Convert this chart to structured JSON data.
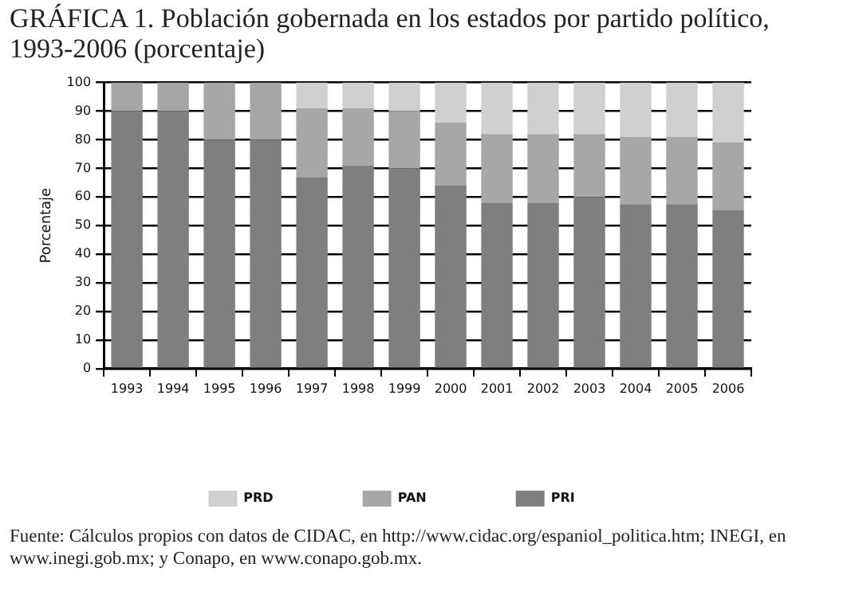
{
  "chart_data": {
    "type": "bar",
    "title": "GRÁFICA 1. Población gobernada en los estados por partido político, 1993-2006 (porcentaje)",
    "ylabel": "Porcentaje",
    "categories": [
      "1993",
      "1994",
      "1995",
      "1996",
      "1997",
      "1998",
      "1999",
      "2000",
      "2001",
      "2002",
      "2003",
      "2004",
      "2005",
      "2006"
    ],
    "series": [
      {
        "name": "PRI",
        "color": "#7f7f82",
        "values": [
          90,
          90,
          80,
          80,
          67,
          71,
          70,
          64,
          58,
          58,
          60,
          57.5,
          57.5,
          55.5
        ]
      },
      {
        "name": "PAN",
        "color": "#a7a7aa",
        "values": [
          10,
          10,
          20,
          20,
          24,
          20,
          20,
          22,
          24,
          24,
          22,
          23.5,
          23.5,
          23.5
        ]
      },
      {
        "name": "PRD",
        "color": "#d0d0d2",
        "values": [
          0,
          0,
          0,
          0,
          9,
          9,
          10,
          14,
          18,
          18,
          18,
          19,
          19,
          21
        ]
      }
    ],
    "stacked": true,
    "ylim": [
      0,
      100
    ],
    "yticks": [
      0,
      10,
      20,
      30,
      40,
      50,
      60,
      70,
      80,
      90,
      100
    ],
    "grid": "y",
    "legend": "bottom",
    "annotations": [
      "Fuente: Cálculos propios con datos de CIDAC, en http://www.cidac.org/espaniol_politica.htm; INEGI, en www.inegi.gob.mx; y Conapo, en www.conapo.gob.mx."
    ]
  }
}
